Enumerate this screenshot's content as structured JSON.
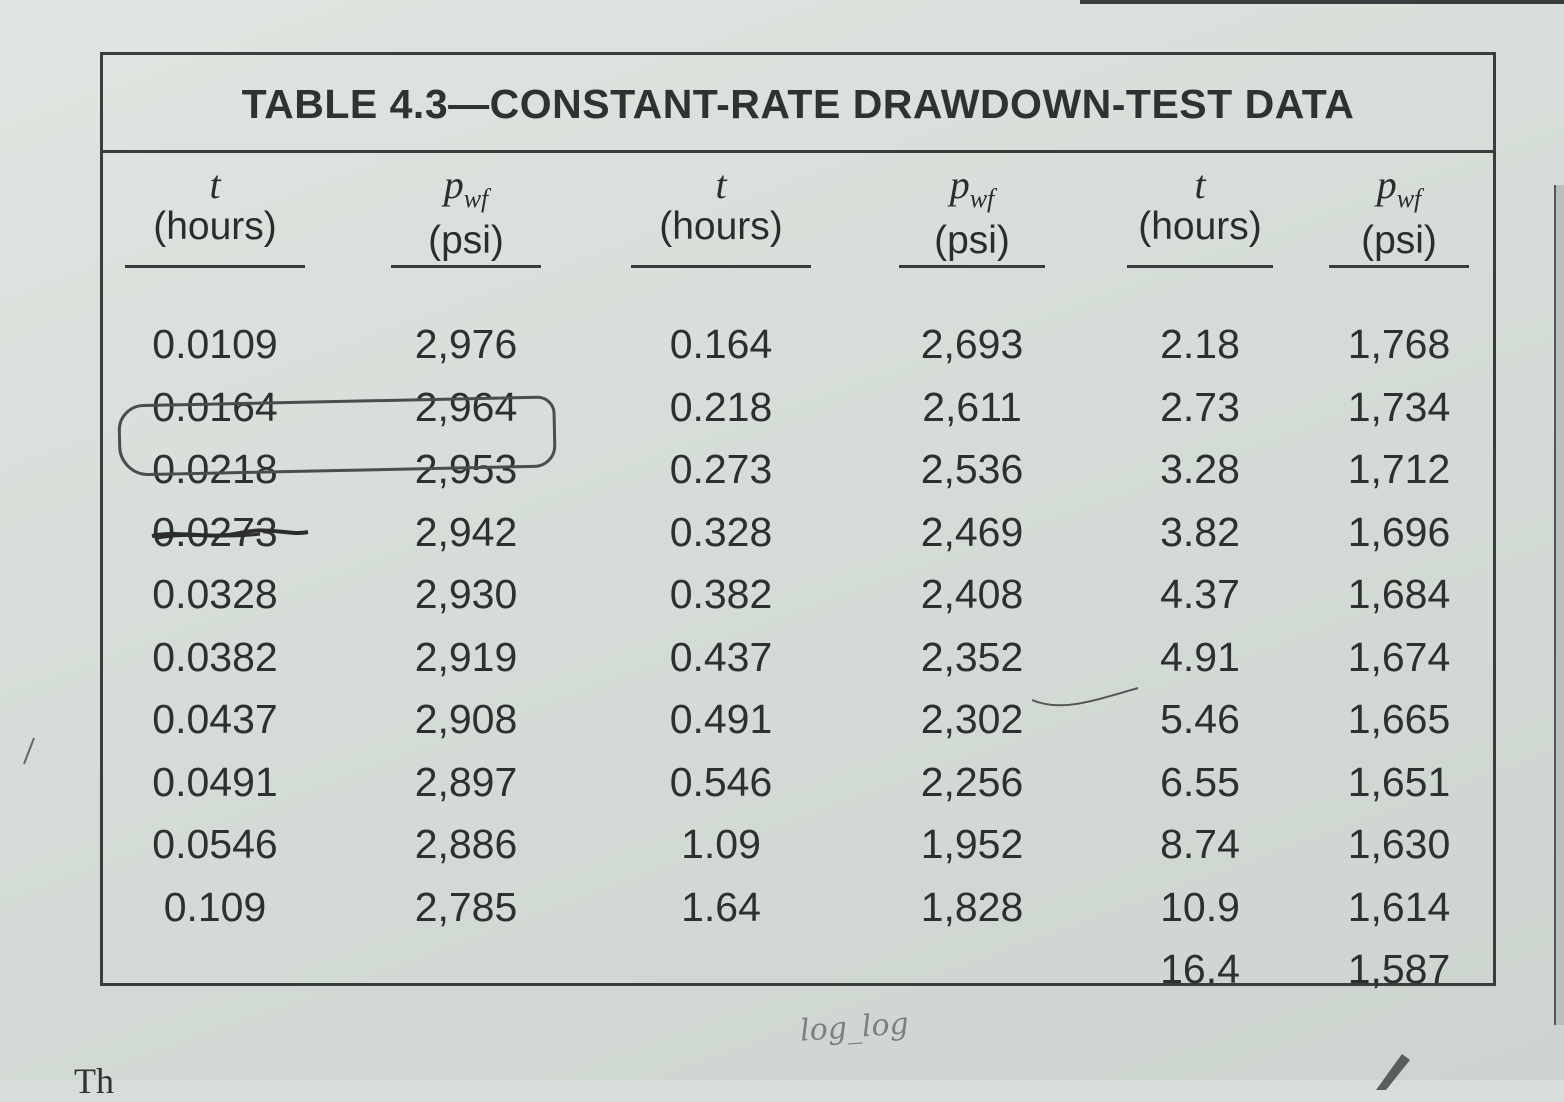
{
  "title": "TABLE 4.3—CONSTANT-RATE DRAWDOWN-TEST DATA",
  "columns": [
    {
      "symbol": "t",
      "unit": "(hours)",
      "values": [
        "0.0109",
        "0.0164",
        "0.0218",
        "0.0273",
        "0.0328",
        "0.0382",
        "0.0437",
        "0.0491",
        "0.0546",
        "0.109"
      ]
    },
    {
      "symbol": "p",
      "sub": "wf",
      "unit": "(psi)",
      "values": [
        "2,976",
        "2,964",
        "2,953",
        "2,942",
        "2,930",
        "2,919",
        "2,908",
        "2,897",
        "2,886",
        "2,785"
      ]
    },
    {
      "symbol": "t",
      "unit": "(hours)",
      "values": [
        "0.164",
        "0.218",
        "0.273",
        "0.328",
        "0.382",
        "0.437",
        "0.491",
        "0.546",
        "1.09",
        "1.64"
      ]
    },
    {
      "symbol": "p",
      "sub": "wf",
      "unit": "(psi)",
      "values": [
        "2,693",
        "2,611",
        "2,536",
        "2,469",
        "2,408",
        "2,352",
        "2,302",
        "2,256",
        "1,952",
        "1,828"
      ]
    },
    {
      "symbol": "t",
      "unit": "(hours)",
      "values": [
        "2.18",
        "2.73",
        "3.28",
        "3.82",
        "4.37",
        "4.91",
        "5.46",
        "6.55",
        "8.74",
        "10.9",
        "16.4"
      ]
    },
    {
      "symbol": "p",
      "sub": "wf",
      "unit": "(psi)",
      "values": [
        "1,768",
        "1,734",
        "1,712",
        "1,696",
        "1,684",
        "1,674",
        "1,665",
        "1,651",
        "1,630",
        "1,614",
        "1,587"
      ]
    }
  ],
  "handwritten_note": "log_log",
  "following_text": "Th"
}
